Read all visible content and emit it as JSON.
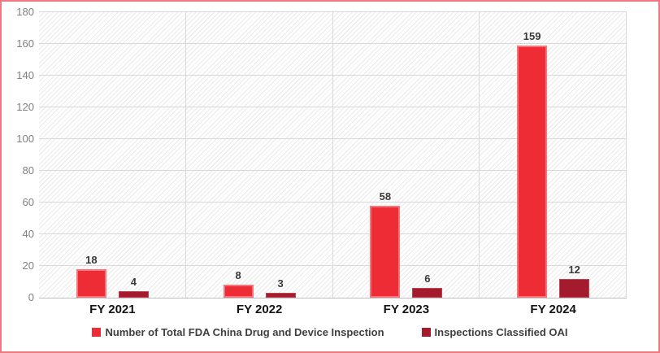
{
  "frame": {
    "border_color": "#f0787e",
    "background": "#ffffff"
  },
  "plot_style": {
    "hatch_color": "#e9e9e9",
    "gridline_color": "#d9d9d9",
    "axis_line_color": "#bfbfbf",
    "tick_label_color": "#808080",
    "category_label_color": "#141414",
    "data_label_color": "#3a3a3a",
    "legend_text_color": "#3f3f3f"
  },
  "chart_data": {
    "type": "bar",
    "categories": [
      "FY 2021",
      "FY 2022",
      "FY 2023",
      "FY 2024"
    ],
    "series": [
      {
        "name": "Number of Total FDA China Drug and Device Inspection",
        "values": [
          18,
          8,
          58,
          159
        ],
        "fill": "#ee2c35",
        "stroke": "#f7757b"
      },
      {
        "name": "Inspections Classified OAI",
        "values": [
          4,
          3,
          6,
          12
        ],
        "fill": "#a31b2d",
        "stroke": "#bc4450"
      }
    ],
    "yticks": [
      0,
      20,
      40,
      60,
      80,
      100,
      120,
      140,
      160,
      180
    ],
    "ylim": [
      0,
      180
    ],
    "data_labels": true,
    "grid": {
      "horizontal": true,
      "vertical": true
    },
    "legend_position": "bottom"
  }
}
